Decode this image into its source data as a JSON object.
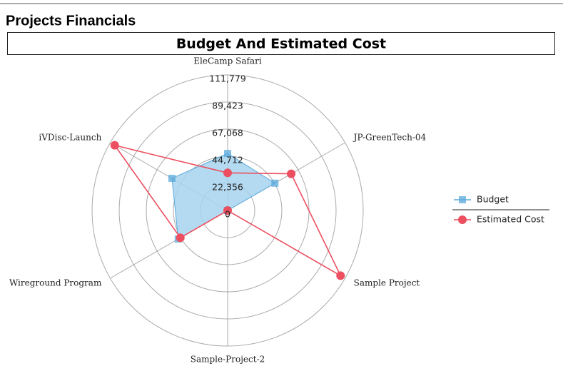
{
  "header": {
    "title": "Projects Financials"
  },
  "chart_data": {
    "type": "radar",
    "title": "Budget And Estimated Cost",
    "categories": [
      "EleCamp Safari",
      "JP-GreenTech-04",
      "Sample Project",
      "Sample-Project-2",
      "Wireground Program",
      "iVDisc-Launch"
    ],
    "series": [
      {
        "name": "Budget",
        "color": "#5aa8dc",
        "fill": "#a7d3ee",
        "marker": "square",
        "values": [
          47000,
          45000,
          0,
          0,
          47000,
          53000
        ]
      },
      {
        "name": "Estimated Cost",
        "color": "#ec4f5f",
        "marker": "circle",
        "values": [
          31000,
          60500,
          107500,
          0,
          45000,
          107500
        ]
      }
    ],
    "ylim": [
      0,
      111779
    ],
    "yticks": [
      0,
      {
        "value": 22356,
        "label": "22,356"
      },
      {
        "value": 44712,
        "label": "44,712"
      },
      {
        "value": 67068,
        "label": "67,068"
      },
      {
        "value": 89423,
        "label": "89,423"
      },
      {
        "value": 111779,
        "label": "111,779"
      }
    ],
    "grid": true,
    "legend": "right"
  }
}
